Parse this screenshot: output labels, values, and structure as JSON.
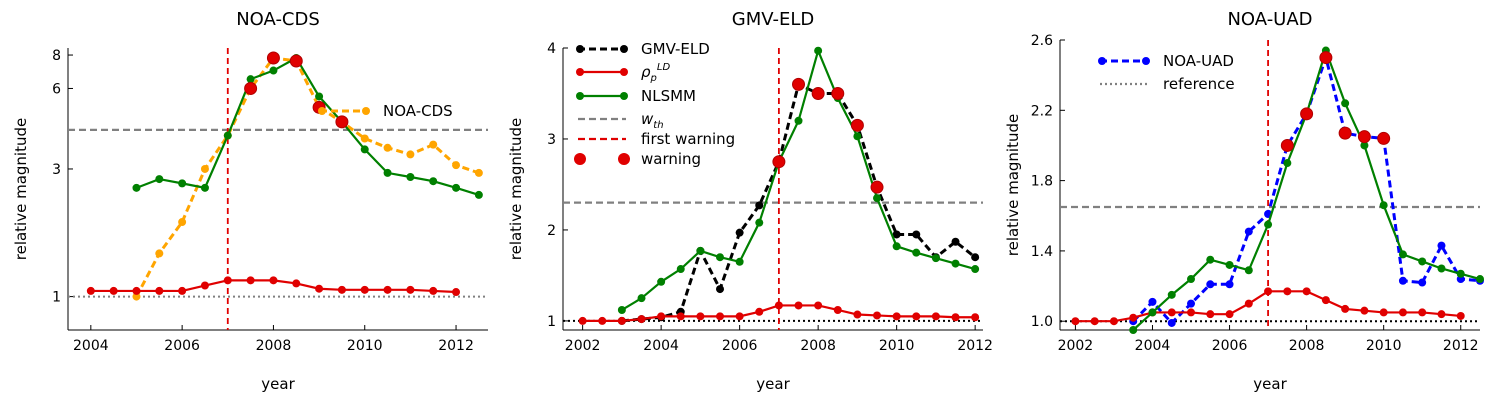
{
  "chart_data": [
    {
      "type": "line",
      "title": "NOA-CDS",
      "xlabel": "year",
      "ylabel": "relative magnitude",
      "xlim": [
        2003.5,
        2012.7
      ],
      "ylim": [
        0.75,
        8.5
      ],
      "yscale": "log",
      "xticks": [
        2004,
        2006,
        2008,
        2010,
        2012
      ],
      "xtick_labels": [
        "2004",
        "2006",
        "2008",
        "2010",
        "2012"
      ],
      "yticks": [
        1,
        3,
        6,
        8
      ],
      "ytick_labels": [
        "1",
        "3",
        "6",
        "8"
      ],
      "reference_lines": [
        {
          "orientation": "horizontal",
          "value": 4.2,
          "color": "#808080",
          "style": "dashed"
        },
        {
          "orientation": "horizontal",
          "value": 1.0,
          "color": "#808080",
          "style": "dotted"
        },
        {
          "orientation": "vertical",
          "value": 2007,
          "color": "#e00000",
          "style": "dashed"
        }
      ],
      "series": [
        {
          "name": "NOA-CDS",
          "color": "#ffa500",
          "style": "dashed",
          "x": [
            2005,
            2005.5,
            2006,
            2006.5,
            2007,
            2007.5,
            2008,
            2008.5,
            2009,
            2009.5,
            2010,
            2010.5,
            2011,
            2011.5,
            2012,
            2012.5
          ],
          "y": [
            1.0,
            1.45,
            1.9,
            3.0,
            4.0,
            6.0,
            7.8,
            7.6,
            5.1,
            4.5,
            3.9,
            3.6,
            3.4,
            3.7,
            3.1,
            2.9
          ]
        },
        {
          "name": "",
          "color": "#008000",
          "style": "solid",
          "x": [
            2005,
            2005.5,
            2006,
            2006.5,
            2007,
            2007.5,
            2008,
            2008.5,
            2009,
            2009.5,
            2010,
            2010.5,
            2011,
            2011.5,
            2012,
            2012.5
          ],
          "y": [
            2.55,
            2.75,
            2.65,
            2.55,
            4.0,
            6.5,
            7.0,
            7.8,
            5.6,
            4.5,
            3.55,
            2.9,
            2.8,
            2.7,
            2.55,
            2.4
          ]
        },
        {
          "name": "",
          "color": "#e00000",
          "style": "solid",
          "x": [
            2004,
            2004.5,
            2005,
            2005.5,
            2006,
            2006.5,
            2007,
            2007.5,
            2008,
            2008.5,
            2009,
            2009.5,
            2010,
            2010.5,
            2011,
            2011.5,
            2012
          ],
          "y": [
            1.05,
            1.05,
            1.05,
            1.05,
            1.05,
            1.1,
            1.15,
            1.15,
            1.15,
            1.12,
            1.07,
            1.06,
            1.06,
            1.06,
            1.06,
            1.05,
            1.04
          ]
        }
      ],
      "warnings": {
        "x": [
          2007.5,
          2008,
          2008.5,
          2009,
          2009.5
        ],
        "y": [
          6.0,
          7.8,
          7.6,
          5.1,
          4.5
        ]
      },
      "legend": {
        "position": "upper-right",
        "entries": [
          "NOA-CDS"
        ]
      }
    },
    {
      "type": "line",
      "title": "GMV-ELD",
      "xlabel": "year",
      "ylabel": "relative magnitude",
      "xlim": [
        2001.5,
        2012.2
      ],
      "ylim": [
        0.9,
        4.0
      ],
      "xticks": [
        2002,
        2004,
        2006,
        2008,
        2010,
        2012
      ],
      "xtick_labels": [
        "2002",
        "2004",
        "2006",
        "2008",
        "2010",
        "2012"
      ],
      "yticks": [
        1,
        2,
        3,
        4
      ],
      "ytick_labels": [
        "1",
        "2",
        "3",
        "4"
      ],
      "reference_lines": [
        {
          "orientation": "horizontal",
          "value": 2.3,
          "color": "#808080",
          "style": "dashed"
        },
        {
          "orientation": "horizontal",
          "value": 1.0,
          "color": "#000000",
          "style": "dotted"
        },
        {
          "orientation": "vertical",
          "value": 2007,
          "color": "#e00000",
          "style": "dashed"
        }
      ],
      "series": [
        {
          "name": "GMV-ELD",
          "color": "#000000",
          "style": "dashed",
          "x": [
            2003,
            2003.5,
            2004,
            2004.5,
            2005,
            2005.5,
            2006,
            2006.5,
            2007,
            2007.5,
            2008,
            2008.5,
            2009,
            2009.5,
            2010,
            2010.5,
            2011,
            2011.5,
            2012
          ],
          "y": [
            1.0,
            1.02,
            1.04,
            1.1,
            1.77,
            1.35,
            1.97,
            2.27,
            2.75,
            3.6,
            3.5,
            3.5,
            3.15,
            2.47,
            1.95,
            1.95,
            1.7,
            1.87,
            1.7
          ]
        },
        {
          "name": "ρ_p^LD",
          "color": "#e00000",
          "style": "solid",
          "x": [
            2002,
            2002.5,
            2003,
            2003.5,
            2004,
            2004.5,
            2005,
            2005.5,
            2006,
            2006.5,
            2007,
            2007.5,
            2008,
            2008.5,
            2009,
            2009.5,
            2010,
            2010.5,
            2011,
            2011.5,
            2012
          ],
          "y": [
            1.0,
            1.0,
            1.0,
            1.02,
            1.05,
            1.05,
            1.05,
            1.05,
            1.05,
            1.1,
            1.17,
            1.17,
            1.17,
            1.12,
            1.07,
            1.06,
            1.05,
            1.05,
            1.05,
            1.04,
            1.04
          ]
        },
        {
          "name": "NLSMM",
          "color": "#008000",
          "style": "solid",
          "x": [
            2003,
            2003.5,
            2004,
            2004.5,
            2005,
            2005.5,
            2006,
            2006.5,
            2007,
            2007.5,
            2008,
            2008.5,
            2009,
            2009.5,
            2010,
            2010.5,
            2011,
            2011.5,
            2012
          ],
          "y": [
            1.12,
            1.25,
            1.43,
            1.57,
            1.77,
            1.7,
            1.65,
            2.08,
            2.75,
            3.2,
            3.97,
            3.45,
            3.03,
            2.35,
            1.82,
            1.75,
            1.69,
            1.63,
            1.57
          ]
        }
      ],
      "warnings": {
        "x": [
          2007,
          2007.5,
          2008,
          2008.5,
          2009,
          2009.5
        ],
        "y": [
          2.75,
          3.6,
          3.5,
          3.5,
          3.15,
          2.47
        ]
      },
      "legend": {
        "position": "upper-left",
        "entries": [
          "GMV-ELD",
          "ρ_p^LD",
          "NLSMM",
          "w_th",
          "first warning",
          "warning"
        ]
      }
    },
    {
      "type": "line",
      "title": "NOA-UAD",
      "xlabel": "year",
      "ylabel": "relative magnitude",
      "xlim": [
        2001.6,
        2012.5
      ],
      "ylim": [
        0.95,
        2.6
      ],
      "xticks": [
        2002,
        2004,
        2006,
        2008,
        2010,
        2012
      ],
      "xtick_labels": [
        "2002",
        "2004",
        "2006",
        "2008",
        "2010",
        "2012"
      ],
      "yticks": [
        1.0,
        1.4,
        1.8,
        2.2,
        2.6
      ],
      "ytick_labels": [
        "1.0",
        "1.4",
        "1.8",
        "2.2",
        "2.6"
      ],
      "reference_lines": [
        {
          "orientation": "horizontal",
          "value": 1.65,
          "color": "#808080",
          "style": "dashed"
        },
        {
          "orientation": "horizontal",
          "value": 1.0,
          "color": "#000000",
          "style": "dotted"
        },
        {
          "orientation": "vertical",
          "value": 2007,
          "color": "#e00000",
          "style": "dashed"
        }
      ],
      "series": [
        {
          "name": "NOA-UAD",
          "color": "#0000ff",
          "style": "dashed",
          "x": [
            2003.5,
            2004,
            2004.5,
            2005,
            2005.5,
            2006,
            2006.5,
            2007,
            2007.5,
            2008,
            2008.5,
            2009,
            2009.5,
            2010,
            2010.5,
            2011,
            2011.5,
            2012,
            2012.5
          ],
          "y": [
            1.0,
            1.11,
            0.99,
            1.1,
            1.21,
            1.21,
            1.51,
            1.61,
            2.0,
            2.18,
            2.5,
            2.07,
            2.05,
            2.04,
            1.23,
            1.22,
            1.43,
            1.24,
            1.23
          ]
        },
        {
          "name": "",
          "color": "#e00000",
          "style": "solid",
          "x": [
            2002,
            2002.5,
            2003,
            2003.5,
            2004,
            2004.5,
            2005,
            2005.5,
            2006,
            2006.5,
            2007,
            2007.5,
            2008,
            2008.5,
            2009,
            2009.5,
            2010,
            2010.5,
            2011,
            2011.5,
            2012
          ],
          "y": [
            1.0,
            1.0,
            1.0,
            1.02,
            1.05,
            1.05,
            1.05,
            1.04,
            1.04,
            1.1,
            1.17,
            1.17,
            1.17,
            1.12,
            1.07,
            1.06,
            1.05,
            1.05,
            1.05,
            1.04,
            1.03
          ]
        },
        {
          "name": "",
          "color": "#008000",
          "style": "solid",
          "x": [
            2003.5,
            2004,
            2004.5,
            2005,
            2005.5,
            2006,
            2006.5,
            2007,
            2007.5,
            2008,
            2008.5,
            2009,
            2009.5,
            2010,
            2010.5,
            2011,
            2011.5,
            2012,
            2012.5
          ],
          "y": [
            0.95,
            1.05,
            1.15,
            1.24,
            1.35,
            1.32,
            1.29,
            1.55,
            1.9,
            2.18,
            2.54,
            2.24,
            2.0,
            1.66,
            1.38,
            1.34,
            1.3,
            1.27,
            1.24
          ]
        }
      ],
      "warnings": {
        "x": [
          2007.5,
          2008,
          2008.5,
          2009,
          2009.5,
          2010
        ],
        "y": [
          2.0,
          2.18,
          2.5,
          2.07,
          2.05,
          2.04
        ]
      },
      "legend": {
        "position": "upper-left",
        "entries": [
          "NOA-UAD",
          "reference"
        ]
      }
    }
  ]
}
